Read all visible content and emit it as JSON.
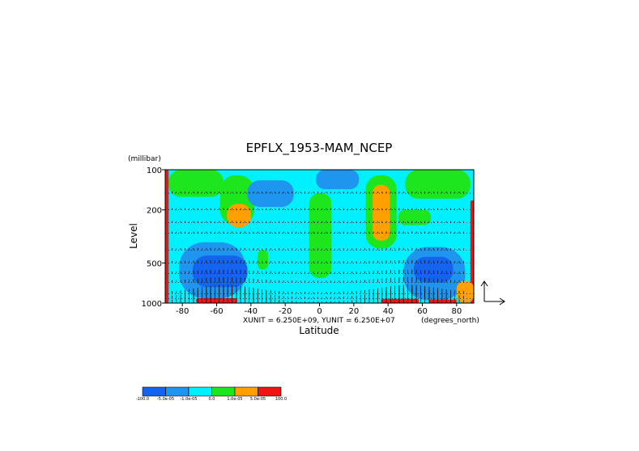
{
  "chart_data": {
    "type": "heatmap",
    "title": "EPFLX_1953-MAM_NCEP",
    "xlabel": "Latitude",
    "ylabel": "Level",
    "y_unit_label": "(millibar)",
    "x_unit_label": "(degrees_north)",
    "xlim": [
      -90,
      90
    ],
    "ylim": [
      1000,
      100
    ],
    "y_scale": "log",
    "x_ticks": [
      "-80",
      "-60",
      "-40",
      "-20",
      "0",
      "20",
      "40",
      "60",
      "80"
    ],
    "x_tick_values": [
      -80,
      -60,
      -40,
      -20,
      0,
      20,
      40,
      60,
      80
    ],
    "y_ticks": [
      "100",
      "200",
      "500",
      "1000"
    ],
    "y_tick_values": [
      100,
      200,
      500,
      1000
    ],
    "grid": "dotted horizontal lines at pressure levels",
    "vector_unit_text": "XUNIT = 6.250E+09, YUNIT = 6.250E+07",
    "colorbar": {
      "colors": [
        "#1464f0",
        "#1e96f0",
        "#00f0ff",
        "#1ee61e",
        "#ffa000",
        "#f01414"
      ],
      "labels": [
        "-100.0",
        "-5.0e-05",
        "-1.0e-05",
        "0.0",
        "1.0e-05",
        "5.0e-05",
        "100.0"
      ]
    },
    "regions": [
      {
        "level": "green",
        "lat": [
          -88,
          -56
        ],
        "p": [
          100,
          160
        ]
      },
      {
        "level": "green",
        "lat": [
          -58,
          -38
        ],
        "p": [
          110,
          260
        ]
      },
      {
        "level": "orange",
        "lat": [
          -54,
          -40
        ],
        "p": [
          180,
          270
        ]
      },
      {
        "level": "green",
        "lat": [
          -6,
          7
        ],
        "p": [
          150,
          650
        ]
      },
      {
        "level": "green",
        "lat": [
          -36,
          -30
        ],
        "p": [
          400,
          560
        ]
      },
      {
        "level": "green",
        "lat": [
          27,
          45
        ],
        "p": [
          110,
          390
        ]
      },
      {
        "level": "orange",
        "lat": [
          31,
          41
        ],
        "p": [
          130,
          340
        ]
      },
      {
        "level": "green",
        "lat": [
          46,
          65
        ],
        "p": [
          200,
          260
        ]
      },
      {
        "level": "green",
        "lat": [
          50,
          88
        ],
        "p": [
          100,
          165
        ]
      },
      {
        "level": "blue",
        "lat": [
          -82,
          -43
        ],
        "p": [
          350,
          920
        ]
      },
      {
        "level": "blue",
        "lat": [
          -42,
          -15
        ],
        "p": [
          120,
          190
        ]
      },
      {
        "level": "blue",
        "lat": [
          -2,
          23
        ],
        "p": [
          100,
          140
        ]
      },
      {
        "level": "blue",
        "lat": [
          49,
          85
        ],
        "p": [
          380,
          950
        ]
      },
      {
        "level": "dark_blue",
        "lat": [
          -74,
          -42
        ],
        "p": [
          440,
          760
        ]
      },
      {
        "level": "dark_blue",
        "lat": [
          55,
          78
        ],
        "p": [
          450,
          700
        ]
      },
      {
        "level": "red",
        "lat": [
          -72,
          -48
        ],
        "p": [
          920,
          1000
        ]
      },
      {
        "level": "red",
        "lat": [
          36,
          58
        ],
        "p": [
          930,
          1000
        ]
      },
      {
        "level": "red",
        "lat": [
          64,
          80
        ],
        "p": [
          940,
          1000
        ]
      },
      {
        "level": "red",
        "lat": [
          -90,
          -88
        ],
        "p": [
          100,
          1000
        ]
      },
      {
        "level": "red",
        "lat": [
          88,
          90
        ],
        "p": [
          170,
          1000
        ]
      },
      {
        "level": "orange",
        "lat": [
          80,
          90
        ],
        "p": [
          680,
          1000
        ]
      }
    ]
  }
}
